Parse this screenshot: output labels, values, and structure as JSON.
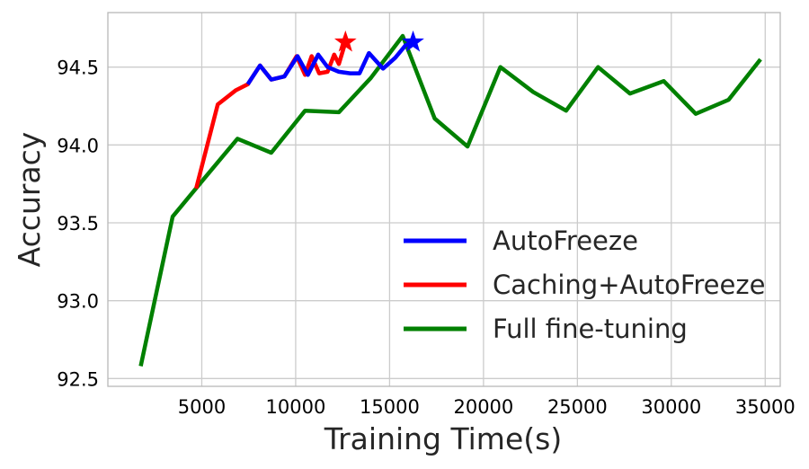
{
  "chart_data": {
    "type": "line",
    "xlabel": "Training Time(s)",
    "ylabel": "Accuracy",
    "xlim": [
      0,
      35800
    ],
    "ylim": [
      92.45,
      94.85
    ],
    "xticks": [
      5000,
      10000,
      15000,
      20000,
      25000,
      30000,
      35000
    ],
    "xtick_labels": [
      "5000",
      "10000",
      "15000",
      "20000",
      "25000",
      "30000",
      "35000"
    ],
    "yticks": [
      92.5,
      93.0,
      93.5,
      94.0,
      94.5
    ],
    "ytick_labels": [
      "92.5",
      "93.0",
      "93.5",
      "94.0",
      "94.5"
    ],
    "grid": true,
    "legend_position": "bottom-right",
    "series": [
      {
        "name": "Full fine-tuning",
        "color": "#008000",
        "x": [
          1750,
          3450,
          5100,
          6900,
          8700,
          10500,
          12300,
          14000,
          15700,
          17400,
          19150,
          20900,
          22650,
          24400,
          26100,
          27800,
          29600,
          31300,
          33050,
          34750
        ],
        "y": [
          92.58,
          93.54,
          93.78,
          94.04,
          93.95,
          94.22,
          94.21,
          94.43,
          94.7,
          94.17,
          93.99,
          94.5,
          94.34,
          94.22,
          94.5,
          94.33,
          94.41,
          94.2,
          94.29,
          94.55
        ],
        "marker_end": false
      },
      {
        "name": "Caching+AutoFreeze",
        "color": "#ff0000",
        "x": [
          4700,
          5850,
          6800,
          7450,
          8100,
          8700,
          9400,
          10050,
          10500,
          10850,
          11250,
          11700,
          12050,
          12300,
          12650
        ],
        "y": [
          93.72,
          94.26,
          94.35,
          94.39,
          94.51,
          94.42,
          94.44,
          94.57,
          94.45,
          94.57,
          94.46,
          94.47,
          94.58,
          94.52,
          94.66
        ],
        "marker_end": true
      },
      {
        "name": "AutoFreeze",
        "color": "#0000ff",
        "x": [
          7450,
          8100,
          8700,
          9400,
          10100,
          10650,
          11200,
          11700,
          12300,
          12900,
          13400,
          13900,
          14650,
          15300,
          15850,
          16250
        ],
        "y": [
          94.39,
          94.51,
          94.42,
          94.44,
          94.57,
          94.45,
          94.58,
          94.5,
          94.47,
          94.46,
          94.46,
          94.59,
          94.49,
          94.56,
          94.64,
          94.66
        ],
        "marker_end": true
      }
    ],
    "legend_order": [
      "AutoFreeze",
      "Caching+AutoFreeze",
      "Full fine-tuning"
    ]
  }
}
